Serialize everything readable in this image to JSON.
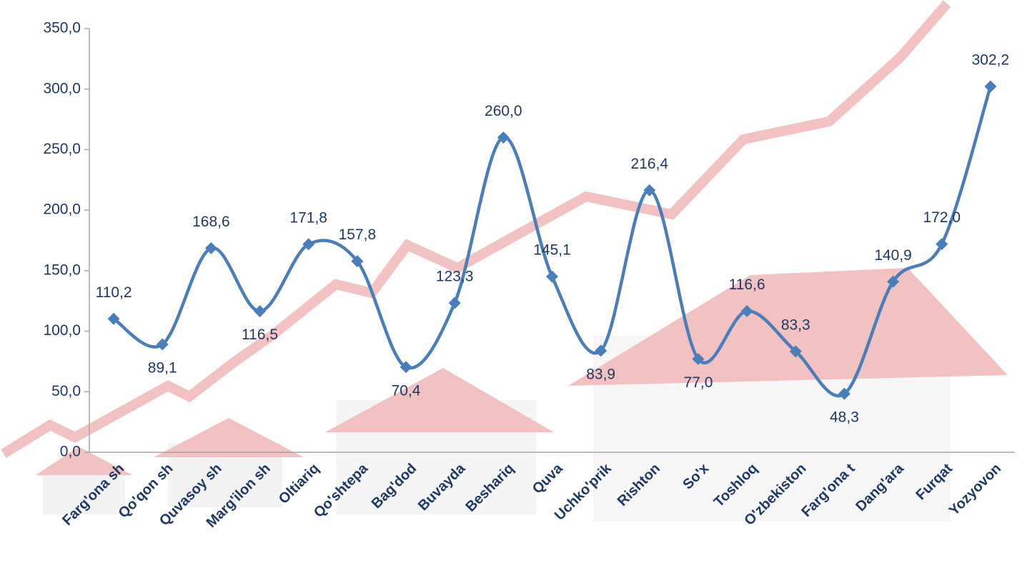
{
  "chart_data": {
    "type": "line",
    "categories": [
      "Farg'ona sh",
      "Qo'qon sh",
      "Quvasoy sh",
      "Marg'ilon sh",
      "Oltiariq",
      "Qo'shtepa",
      "Bag'dod",
      "Buvayda",
      "Beshariq",
      "Quva",
      "Uchko'prik",
      "Rishton",
      "So'x",
      "Toshloq",
      "O'zbekiston",
      "Farg'ona t",
      "Dang'ara",
      "Furqat",
      "Yozyovon"
    ],
    "values": [
      110.2,
      89.1,
      168.6,
      116.5,
      171.8,
      157.8,
      70.4,
      123.3,
      260.0,
      145.1,
      83.9,
      216.4,
      77.0,
      116.6,
      83.3,
      48.3,
      140.9,
      172.0,
      302.2
    ],
    "value_labels": [
      "110,2",
      "89,1",
      "168,6",
      "116,5",
      "171,8",
      "157,8",
      "70,4",
      "123,3",
      "260,0",
      "145,1",
      "83,9",
      "216,4",
      "77,0",
      "116,6",
      "83,3",
      "48,3",
      "140,9",
      "172,0",
      "302,2"
    ],
    "color": "#4a7ebb",
    "smooth": true,
    "ylim": [
      0,
      350
    ],
    "yticks": [
      {
        "value": 0,
        "label": "0,0"
      },
      {
        "value": 50,
        "label": "50,0"
      },
      {
        "value": 100,
        "label": "100,0"
      },
      {
        "value": 150,
        "label": "150,0"
      },
      {
        "value": 200,
        "label": "200,0"
      },
      {
        "value": 250,
        "label": "250,0"
      },
      {
        "value": 300,
        "label": "300,0"
      },
      {
        "value": 350,
        "label": "350,0"
      }
    ]
  }
}
